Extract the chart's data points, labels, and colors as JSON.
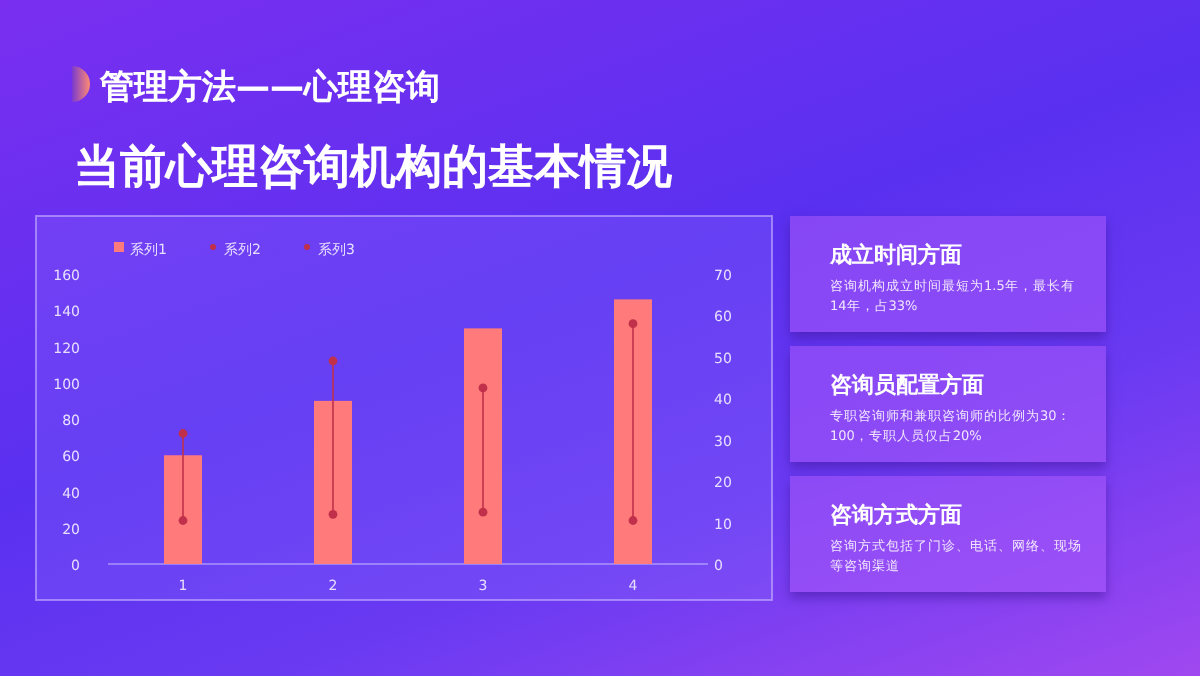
{
  "chart_data": [
    {
      "type": "bar",
      "title": "管理方法——心理咨询",
      "subtitle": "当前心理咨询机构的基本情况",
      "categories": [
        "1",
        "2",
        "3",
        "4"
      ],
      "series": [
        {
          "name": "系列1",
          "color": "#ff7a7a",
          "values": [
            60,
            90,
            130,
            146
          ]
        },
        {
          "name": "系列2",
          "type": "scatter",
          "axis": "y2",
          "color": "#c0304a",
          "values": [
            31.5,
            49,
            42.5,
            58
          ]
        },
        {
          "name": "系列3",
          "type": "scatter",
          "axis": "y2",
          "color": "#c0304a",
          "values": [
            10.5,
            12,
            12.5,
            10.5
          ]
        }
      ],
      "ylim": [
        0,
        160
      ],
      "yticks": [
        0,
        20,
        40,
        60,
        80,
        100,
        120,
        140,
        160
      ],
      "y2lim": [
        0,
        70
      ],
      "y2ticks": [
        0,
        10,
        20,
        30,
        40,
        50,
        60,
        70
      ],
      "legend": "top left",
      "grid": false
    },
    {
      "type": "other",
      "annotations": [
        "成立时间方面",
        "咨询机构成立时间最短为1.5年，最长有14年，占33%",
        "咨询员配置方面",
        "专职咨询师和兼职咨询师的比例为30：100，专职人员仅占20%",
        "咨询方式方面",
        "咨询方式包括了门诊、电话、网络、现场等咨询渠道"
      ]
    }
  ]
}
